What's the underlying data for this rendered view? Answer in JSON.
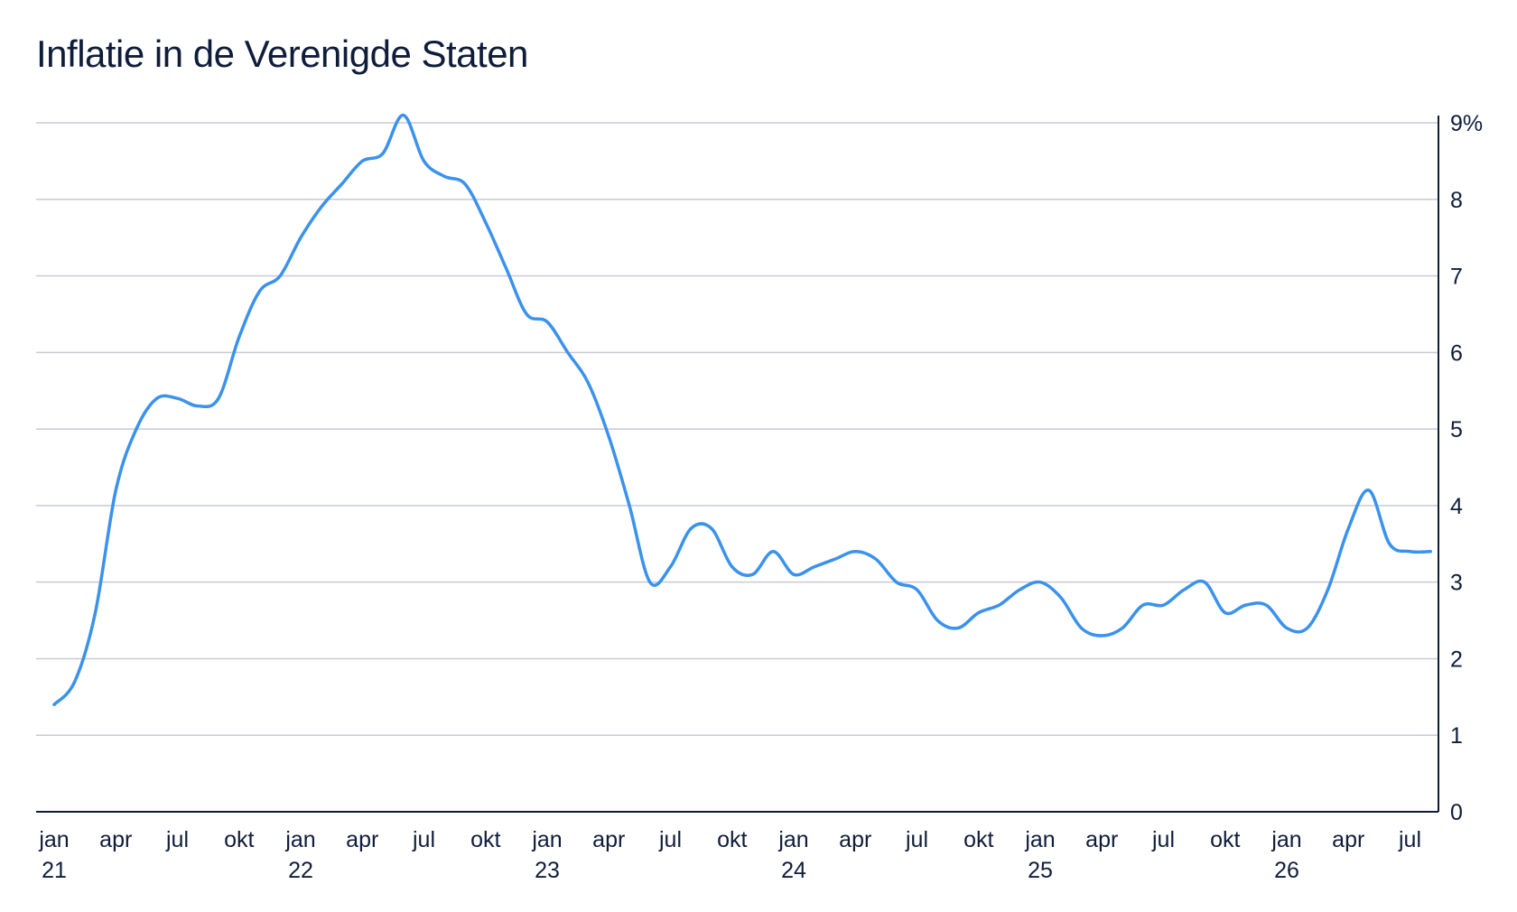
{
  "title": "Inflatie in de Verenigde Staten",
  "colors": {
    "line": "#3a92ec",
    "grid": "#c7cad6",
    "axis": "#0f1d3a",
    "text": "#0f1d3a"
  },
  "chart_data": {
    "type": "line",
    "title": "Inflatie in de Verenigde Staten",
    "xlabel": "",
    "ylabel": "",
    "ylim": [
      0,
      9
    ],
    "yticks": [
      "0",
      "1",
      "2",
      "3",
      "4",
      "5",
      "6",
      "7",
      "8",
      "9%"
    ],
    "xticks": [
      {
        "m": "jan",
        "y": "21"
      },
      {
        "m": "apr",
        "y": ""
      },
      {
        "m": "jul",
        "y": ""
      },
      {
        "m": "okt",
        "y": ""
      },
      {
        "m": "jan",
        "y": "22"
      },
      {
        "m": "apr",
        "y": ""
      },
      {
        "m": "jul",
        "y": ""
      },
      {
        "m": "okt",
        "y": ""
      },
      {
        "m": "jan",
        "y": "23"
      },
      {
        "m": "apr",
        "y": ""
      },
      {
        "m": "jul",
        "y": ""
      },
      {
        "m": "okt",
        "y": ""
      },
      {
        "m": "jan",
        "y": "24"
      },
      {
        "m": "apr",
        "y": ""
      },
      {
        "m": "jul",
        "y": ""
      },
      {
        "m": "okt",
        "y": ""
      },
      {
        "m": "jan",
        "y": "25"
      },
      {
        "m": "apr",
        "y": ""
      },
      {
        "m": "jul",
        "y": ""
      },
      {
        "m": "okt",
        "y": ""
      },
      {
        "m": "jan",
        "y": "26"
      },
      {
        "m": "apr",
        "y": ""
      },
      {
        "m": "jul",
        "y": ""
      }
    ],
    "grid": true,
    "y_axis_side": "right",
    "series": [
      {
        "x": [
          "2021-01",
          "2021-02",
          "2021-03",
          "2021-04",
          "2021-05",
          "2021-06",
          "2021-07",
          "2021-08",
          "2021-09",
          "2021-10",
          "2021-11",
          "2021-12",
          "2022-01",
          "2022-02",
          "2022-03",
          "2022-04",
          "2022-05",
          "2022-06",
          "2022-07",
          "2022-08",
          "2022-09",
          "2022-10",
          "2022-11",
          "2022-12",
          "2023-01",
          "2023-02",
          "2023-03",
          "2023-04",
          "2023-05",
          "2023-06",
          "2023-07",
          "2023-08",
          "2023-09",
          "2023-10",
          "2023-11",
          "2023-12",
          "2024-01",
          "2024-02",
          "2024-03",
          "2024-04",
          "2024-05",
          "2024-06",
          "2024-07",
          "2024-08",
          "2024-09",
          "2024-10",
          "2024-11",
          "2024-12",
          "2025-01",
          "2025-02",
          "2025-03",
          "2025-04",
          "2025-05",
          "2025-06",
          "2025-07",
          "2025-08",
          "2025-09",
          "2025-10",
          "2025-11",
          "2025-12",
          "2026-01",
          "2026-02",
          "2026-03",
          "2026-04",
          "2026-05",
          "2026-06",
          "2026-07",
          "2026-08"
        ],
        "values": [
          1.4,
          1.7,
          2.6,
          4.2,
          5.0,
          5.4,
          5.4,
          5.3,
          5.4,
          6.2,
          6.8,
          7.0,
          7.5,
          7.9,
          8.2,
          8.5,
          8.6,
          9.1,
          8.5,
          8.3,
          8.2,
          7.7,
          7.1,
          6.5,
          6.4,
          6.0,
          5.6,
          4.9,
          4.0,
          3.0,
          3.2,
          3.7,
          3.7,
          3.2,
          3.1,
          3.4,
          3.1,
          3.2,
          3.3,
          3.4,
          3.3,
          3.0,
          2.9,
          2.5,
          2.4,
          2.6,
          2.7,
          2.9,
          3.0,
          2.8,
          2.4,
          2.3,
          2.4,
          2.7,
          2.7,
          2.9,
          3.0,
          2.6,
          2.7,
          2.7,
          2.4,
          2.4,
          2.9,
          3.7,
          4.2,
          3.5,
          3.4,
          3.4
        ]
      }
    ]
  }
}
